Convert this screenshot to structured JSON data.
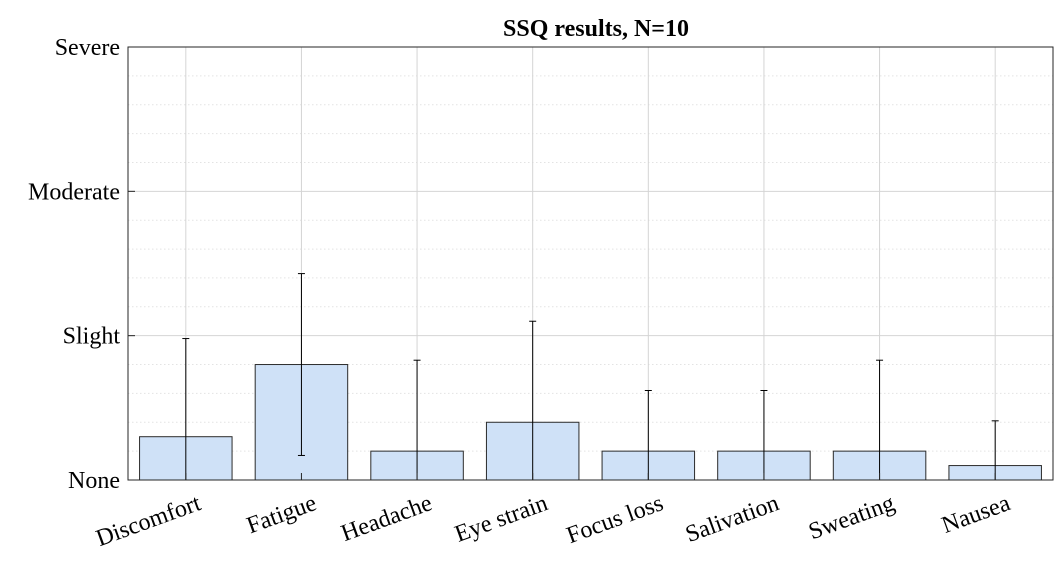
{
  "chart_data": {
    "type": "bar",
    "title": "SSQ results, N=10",
    "xlabel": "",
    "ylabel": "",
    "categories": [
      "Discomfort",
      "Fatigue",
      "Headache",
      "Eye strain",
      "Focus loss",
      "Salivation",
      "Sweating",
      "Nausea"
    ],
    "values": [
      0.3,
      0.8,
      0.2,
      0.4,
      0.2,
      0.2,
      0.2,
      0.1
    ],
    "error": [
      0.68,
      0.63,
      0.63,
      0.7,
      0.42,
      0.42,
      0.63,
      0.31
    ],
    "ylim": [
      0,
      3
    ],
    "yticks": [
      0,
      1,
      2,
      3
    ],
    "ytick_labels": [
      "None",
      "Slight",
      "Moderate",
      "Severe"
    ],
    "grid": true,
    "minor_grid": true,
    "colors": {
      "bar_fill": "#cfe1f7",
      "bar_edge": "#2b2b2b",
      "grid_major": "#d4d4d4",
      "grid_minor": "#e3e3e3",
      "axis": "#262626"
    }
  }
}
